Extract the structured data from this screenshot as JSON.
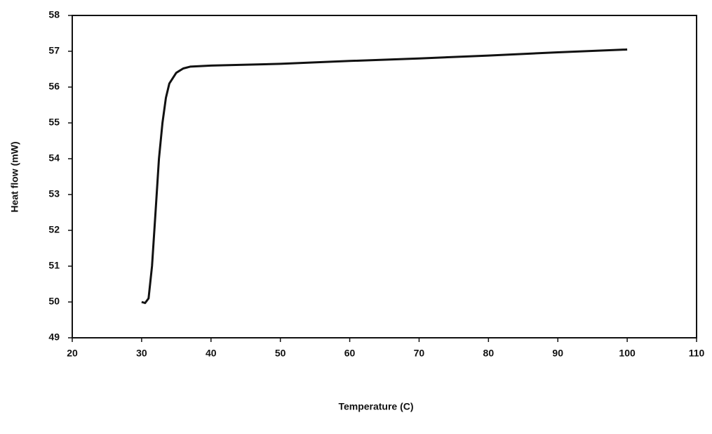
{
  "chart_data": {
    "type": "line",
    "x_label": "Temperature (C)",
    "y_label": "Heat flow (mW)",
    "x": [
      30,
      30.5,
      31,
      31.5,
      32,
      32.5,
      33,
      33.5,
      34,
      35,
      36,
      37,
      40,
      50,
      60,
      70,
      80,
      90,
      100
    ],
    "values": [
      50.0,
      49.97,
      50.1,
      51.0,
      52.5,
      54.0,
      55.0,
      55.7,
      56.1,
      56.4,
      56.52,
      56.57,
      56.6,
      56.65,
      56.73,
      56.8,
      56.88,
      56.97,
      57.05
    ],
    "color": "#111111",
    "xlim": [
      20,
      110
    ],
    "xticks": [
      20,
      30,
      40,
      50,
      60,
      70,
      80,
      90,
      100,
      110
    ],
    "ylim": [
      49,
      58
    ],
    "yticks": [
      49,
      50,
      51,
      52,
      53,
      54,
      55,
      56,
      57,
      58
    ],
    "grid": false
  }
}
